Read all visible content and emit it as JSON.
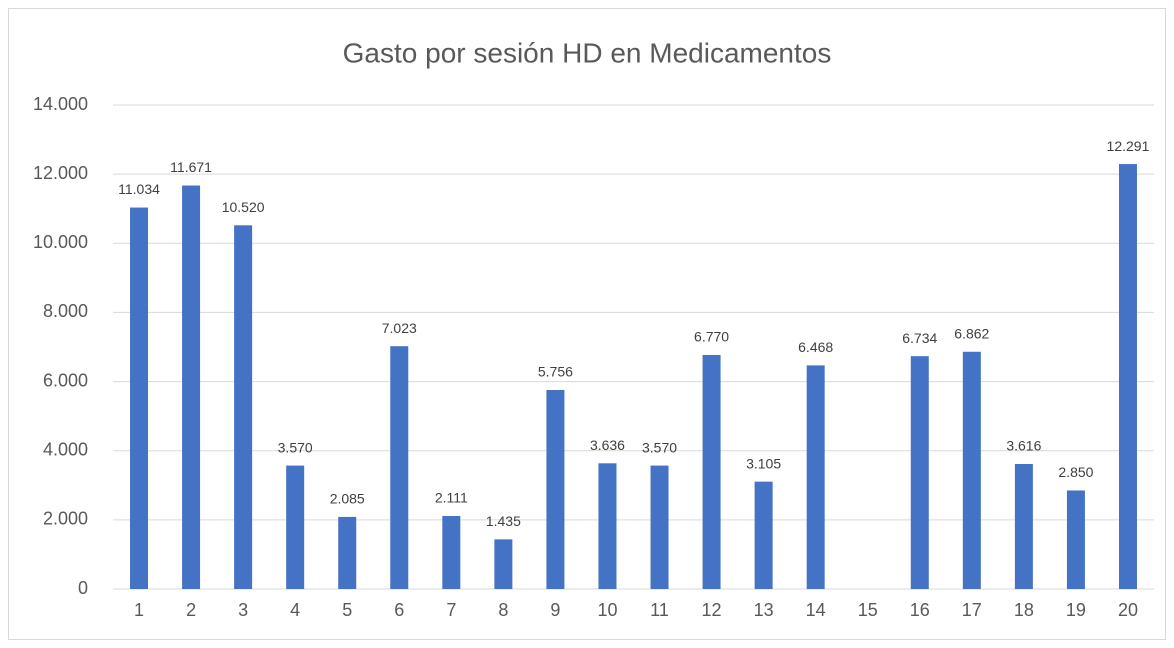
{
  "chart_data": {
    "type": "bar",
    "title": "Gasto por sesión HD en Medicamentos",
    "categories": [
      "1",
      "2",
      "3",
      "4",
      "5",
      "6",
      "7",
      "8",
      "9",
      "10",
      "11",
      "12",
      "13",
      "14",
      "15",
      "16",
      "17",
      "18",
      "19",
      "20"
    ],
    "values": [
      11034,
      11671,
      10520,
      3570,
      2085,
      7023,
      2111,
      1435,
      5756,
      3636,
      3570,
      6770,
      3105,
      6468,
      null,
      6734,
      6862,
      3616,
      2850,
      12291
    ],
    "value_labels": [
      "11.034",
      "11.671",
      "10.520",
      "3.570",
      "2.085",
      "7.023",
      "2.111",
      "1.435",
      "5.756",
      "3.636",
      "3.570",
      "6.770",
      "3.105",
      "6.468",
      null,
      "6.734",
      "6.862",
      "3.616",
      "2.850",
      "12.291"
    ],
    "color": "#4472c4",
    "ylim": [
      0,
      14000
    ],
    "yticks": [
      0,
      {
        "value": 2000,
        "label": "2.000"
      },
      {
        "value": 4000,
        "label": "4.000"
      },
      {
        "value": 6000,
        "label": "6.000"
      },
      {
        "value": 8000,
        "label": "8.000"
      },
      {
        "value": 10000,
        "label": "10.000"
      },
      {
        "value": 12000,
        "label": "12.000"
      },
      {
        "value": 14000,
        "label": "14.000"
      }
    ],
    "grid": true
  }
}
